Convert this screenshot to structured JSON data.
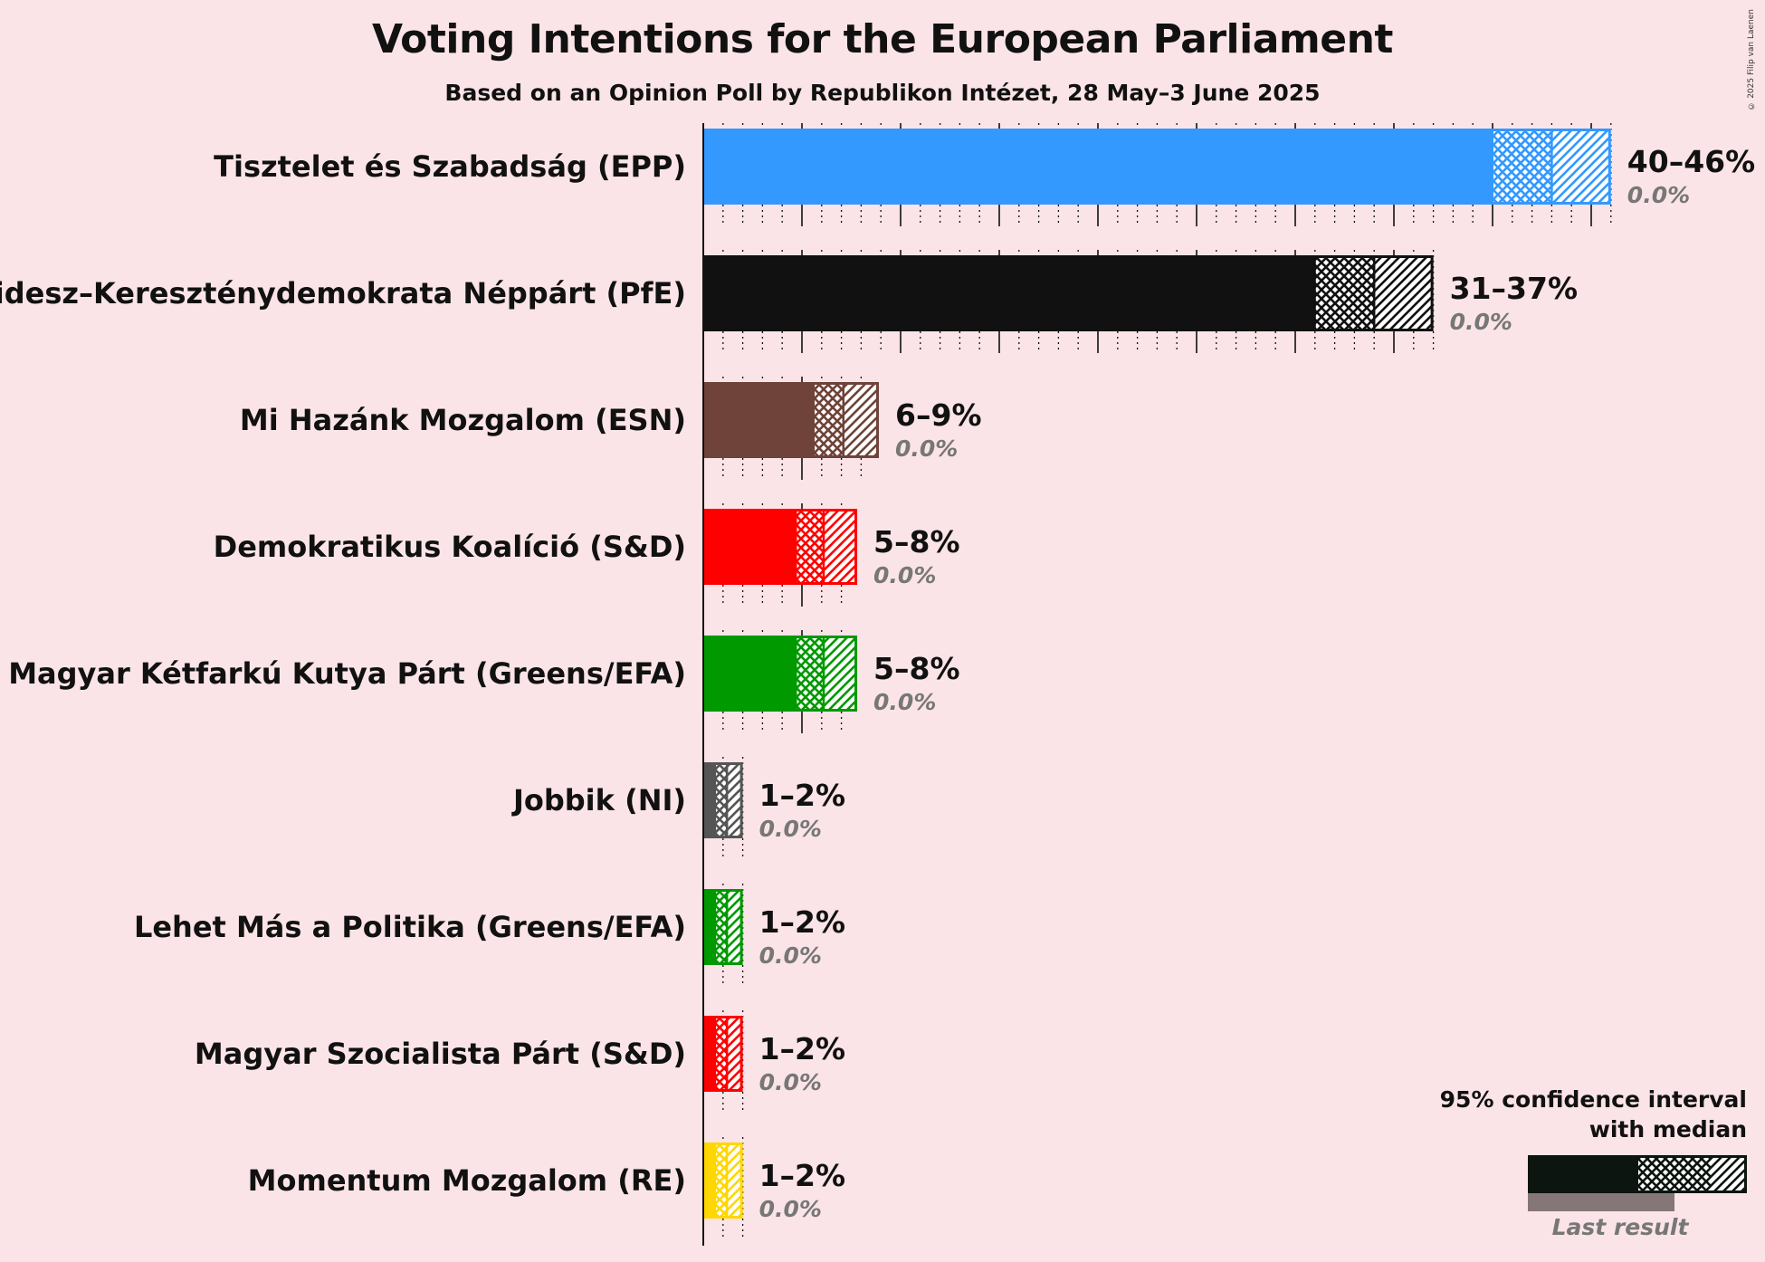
{
  "title": "Voting Intentions for the European Parliament",
  "subtitle": "Based on an Opinion Poll by Republikon Intézet, 28 May–3 June 2025",
  "copyright": "© 2025 Filip van Laenen",
  "legend": {
    "line1": "95% confidence interval",
    "line2": "with median",
    "last_result": "Last result",
    "color": "#0d1510"
  },
  "chart_data": {
    "type": "bar",
    "orientation": "horizontal",
    "unit": "%",
    "xlim": [
      0,
      46
    ],
    "major_gridline_every": 5,
    "minor_gridline_every": 1,
    "series": [
      {
        "party": "Tisztelet és Szabadság (EPP)",
        "color": "#3399ff",
        "ci_low": 40,
        "median": 43,
        "ci_high": 46,
        "range_label": "40–46%",
        "last_result": 0.0,
        "last_label": "0.0%"
      },
      {
        "party": "Fidesz–Kereszténydemokrata Néppárt (PfE)",
        "color": "#111111",
        "ci_low": 31,
        "median": 34,
        "ci_high": 37,
        "range_label": "31–37%",
        "last_result": 0.0,
        "last_label": "0.0%"
      },
      {
        "party": "Mi Hazánk Mozgalom (ESN)",
        "color": "#6f4339",
        "ci_low": 5.6,
        "median": 7.1,
        "ci_high": 8.9,
        "range_label": "6–9%",
        "last_result": 0.0,
        "last_label": "0.0%"
      },
      {
        "party": "Demokratikus Koalíció (S&D)",
        "color": "#ff0000",
        "ci_low": 4.7,
        "median": 6.1,
        "ci_high": 7.8,
        "range_label": "5–8%",
        "last_result": 0.0,
        "last_label": "0.0%"
      },
      {
        "party": "Magyar Kétfarkú Kutya Párt (Greens/EFA)",
        "color": "#009900",
        "ci_low": 4.7,
        "median": 6.1,
        "ci_high": 7.8,
        "range_label": "5–8%",
        "last_result": 0.0,
        "last_label": "0.0%"
      },
      {
        "party": "Jobbik (NI)",
        "color": "#555555",
        "ci_low": 0.6,
        "median": 1.2,
        "ci_high": 2.0,
        "range_label": "1–2%",
        "last_result": 0.0,
        "last_label": "0.0%"
      },
      {
        "party": "Lehet Más a Politika (Greens/EFA)",
        "color": "#009900",
        "ci_low": 0.6,
        "median": 1.2,
        "ci_high": 2.0,
        "range_label": "1–2%",
        "last_result": 0.0,
        "last_label": "0.0%"
      },
      {
        "party": "Magyar Szocialista Párt (S&D)",
        "color": "#ff0000",
        "ci_low": 0.6,
        "median": 1.2,
        "ci_high": 2.0,
        "range_label": "1–2%",
        "last_result": 0.0,
        "last_label": "0.0%"
      },
      {
        "party": "Momentum Mozgalom (RE)",
        "color": "#ffd700",
        "ci_low": 0.6,
        "median": 1.2,
        "ci_high": 2.0,
        "range_label": "1–2%",
        "last_result": 0.0,
        "last_label": "0.0%"
      }
    ]
  }
}
